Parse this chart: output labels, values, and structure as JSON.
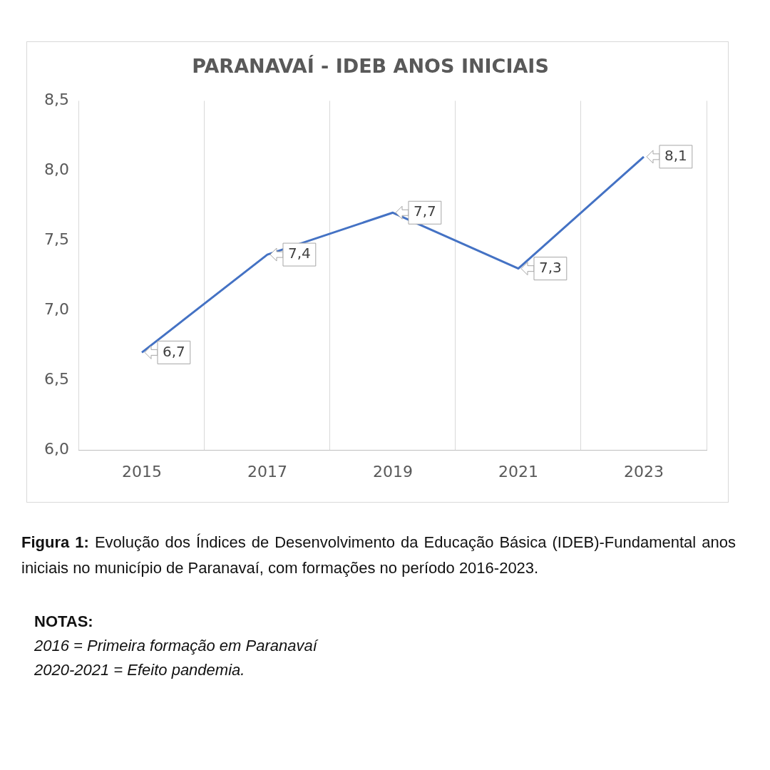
{
  "chart_data": {
    "type": "line",
    "title": "PARANAVAÍ - IDEB ANOS INICIAIS",
    "categories": [
      "2015",
      "2017",
      "2019",
      "2021",
      "2023"
    ],
    "series": [
      {
        "color": "#4472c4",
        "values": [
          6.7,
          7.4,
          7.7,
          7.3,
          8.1
        ],
        "value_labels": [
          "6,7",
          "7,4",
          "7,7",
          "7,3",
          "8,1"
        ]
      }
    ],
    "ylim": [
      6.0,
      8.5
    ],
    "yticks": [
      {
        "value": 6.0,
        "label": "6,0"
      },
      {
        "value": 6.5,
        "label": "6,5"
      },
      {
        "value": 7.0,
        "label": "7,0"
      },
      {
        "value": 7.5,
        "label": "7,5"
      },
      {
        "value": 8.0,
        "label": "8,0"
      },
      {
        "value": 8.5,
        "label": "8,5"
      }
    ],
    "grid": "x",
    "legend": false,
    "marker": "none",
    "line_style": "solid",
    "annotations": [
      "Figura 1:",
      "Evolução dos Índices de Desenvolvimento da Educação Básica (IDEB)-Fundamental anos iniciais no município de Paranavaí, com formações no período 2016-2023.",
      "NOTAS:",
      "2016 = Primeira formação em Paranavaí",
      "2020-2021 = Efeito pandemia."
    ]
  }
}
